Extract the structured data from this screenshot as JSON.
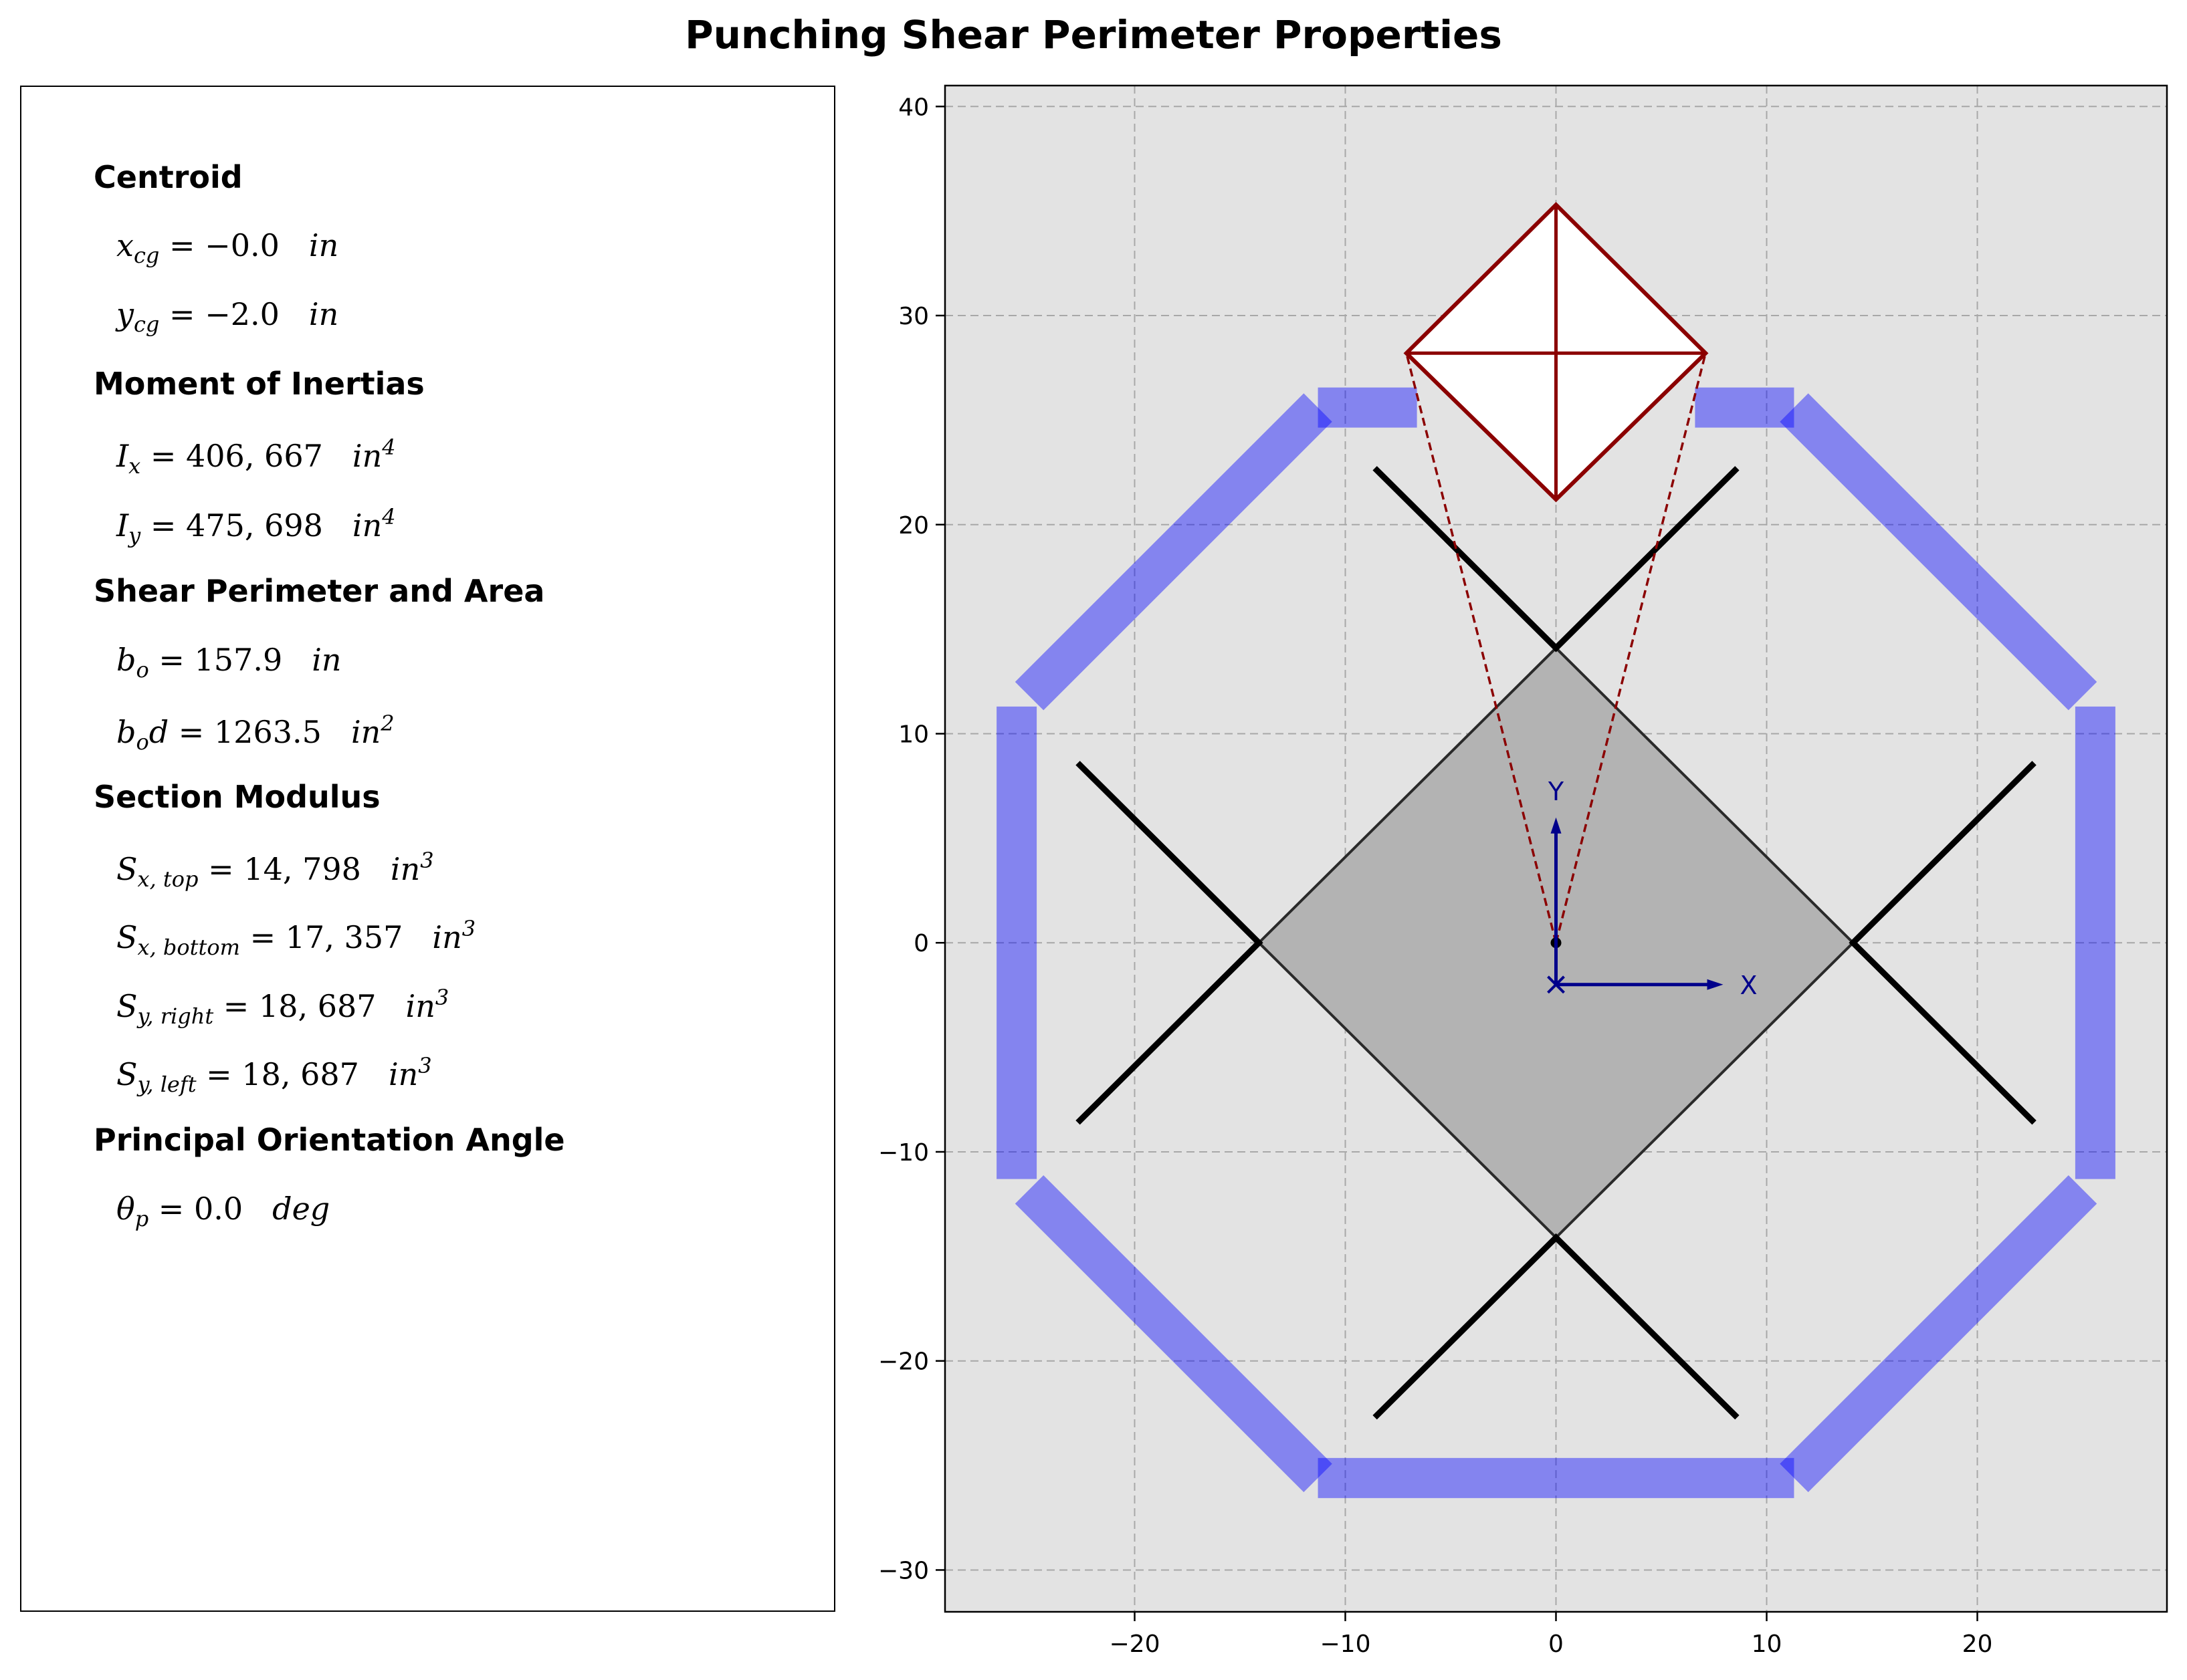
{
  "title": "Punching Shear Perimeter Properties",
  "properties": {
    "centroid_heading": "Centroid",
    "xcg_value": "−0.0",
    "xcg_unit": "in",
    "ycg_value": "−2.0",
    "ycg_unit": "in",
    "inertia_heading": "Moment of Inertias",
    "ix_value": "406, 667",
    "ix_unit": "in",
    "ix_unit_exp": "4",
    "iy_value": "475, 698",
    "iy_unit": "in",
    "iy_unit_exp": "4",
    "perimeter_heading": "Shear Perimeter and Area",
    "bo_value": "157.9",
    "bo_unit": "in",
    "bod_value": "1263.5",
    "bod_unit": "in",
    "bod_unit_exp": "2",
    "modulus_heading": "Section Modulus",
    "sxtop_value": "14, 798",
    "sxtop_unit": "in",
    "sxtop_unit_exp": "3",
    "sxbottom_value": "17, 357",
    "sxbottom_unit": "in",
    "sxbottom_unit_exp": "3",
    "syright_value": "18, 687",
    "syright_unit": "in",
    "syright_unit_exp": "3",
    "syleft_value": "18, 687",
    "syleft_unit": "in",
    "syleft_unit_exp": "3",
    "angle_heading": "Principal Orientation Angle",
    "theta_value": "0.0",
    "theta_unit": "deg"
  },
  "chart_data": {
    "type": "diagram",
    "xlim": [
      -29,
      29
    ],
    "ylim": [
      -32,
      41
    ],
    "x_ticks": [
      -20,
      -10,
      0,
      10,
      20
    ],
    "x_tick_labels": [
      "−20",
      "−10",
      "0",
      "10",
      "20"
    ],
    "y_ticks": [
      -30,
      -20,
      -10,
      0,
      10,
      20,
      30,
      40
    ],
    "y_tick_labels": [
      "−30",
      "−20",
      "−10",
      "0",
      "10",
      "20",
      "30",
      "40"
    ],
    "grid": true,
    "background_color": "#e3e3e3",
    "column": {
      "vertices": [
        [
          0,
          14.1
        ],
        [
          14.1,
          0
        ],
        [
          0,
          -14.1
        ],
        [
          -14.1,
          0
        ]
      ],
      "color": "#b3b3b3"
    },
    "perimeter_segments": [
      [
        [
          -11.3,
          25.6
        ],
        [
          -6.6,
          25.6
        ]
      ],
      [
        [
          6.6,
          25.6
        ],
        [
          11.3,
          25.6
        ]
      ],
      [
        [
          11.3,
          25.6
        ],
        [
          25.0,
          11.8
        ]
      ],
      [
        [
          25.6,
          11.3
        ],
        [
          25.6,
          -11.3
        ]
      ],
      [
        [
          25.0,
          -11.8
        ],
        [
          11.3,
          -25.6
        ]
      ],
      [
        [
          11.3,
          -25.6
        ],
        [
          -11.3,
          -25.6
        ]
      ],
      [
        [
          -11.3,
          -25.6
        ],
        [
          -25.0,
          -11.8
        ]
      ],
      [
        [
          -25.6,
          -11.3
        ],
        [
          -25.6,
          11.3
        ]
      ],
      [
        [
          -25.0,
          11.8
        ],
        [
          -11.3,
          25.6
        ]
      ]
    ],
    "perimeter_color": "#0000ff",
    "diagonal_lines": [
      [
        [
          -8.6,
          22.7
        ],
        [
          0,
          14.1
        ],
        [
          8.6,
          22.7
        ]
      ],
      [
        [
          -8.6,
          -22.7
        ],
        [
          0,
          -14.1
        ],
        [
          8.6,
          -22.7
        ]
      ],
      [
        [
          -22.7,
          8.6
        ],
        [
          -14.1,
          0
        ],
        [
          -22.7,
          -8.6
        ]
      ],
      [
        [
          22.7,
          8.6
        ],
        [
          14.1,
          0
        ],
        [
          22.7,
          -8.6
        ]
      ]
    ],
    "opening": {
      "vertices": [
        [
          0,
          35.3
        ],
        [
          7.1,
          28.2
        ],
        [
          0,
          21.2
        ],
        [
          -7.1,
          28.2
        ]
      ],
      "color": "#8b0000",
      "projection_origin": [
        0,
        0
      ]
    },
    "axes_glyph": {
      "origin": [
        0,
        -2.0
      ],
      "x_label": "X",
      "y_label": "Y",
      "color": "#00008b"
    },
    "centroid_point": [
      0,
      0
    ]
  }
}
